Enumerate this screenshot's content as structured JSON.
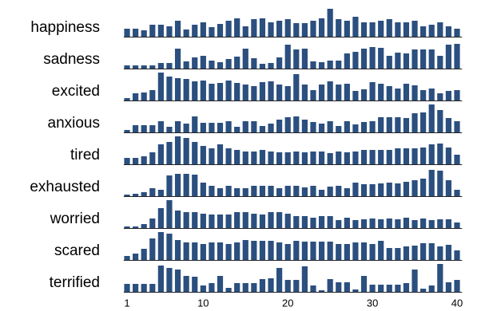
{
  "chart_data": {
    "type": "bar",
    "color": "#2b4f7e",
    "x": [
      1,
      2,
      3,
      4,
      5,
      6,
      7,
      8,
      9,
      10,
      11,
      12,
      13,
      14,
      15,
      16,
      17,
      18,
      19,
      20,
      21,
      22,
      23,
      24,
      25,
      26,
      27,
      28,
      29,
      30,
      31,
      32,
      33,
      34,
      35,
      36,
      37,
      38,
      39,
      40
    ],
    "xlim": [
      0.8,
      40.5
    ],
    "xticks": [
      1,
      10,
      20,
      30,
      40
    ],
    "ylim": [
      0,
      35
    ],
    "series": [
      {
        "name": "happiness",
        "values": [
          10,
          10,
          8,
          15,
          15,
          13,
          20,
          9,
          15,
          18,
          12,
          16,
          20,
          23,
          13,
          22,
          23,
          18,
          20,
          22,
          17,
          17,
          20,
          23,
          35,
          22,
          20,
          25,
          18,
          18,
          20,
          22,
          18,
          18,
          20,
          13,
          15,
          18,
          13,
          10
        ]
      },
      {
        "name": "sadness",
        "values": [
          4,
          4,
          4,
          4,
          7,
          7,
          25,
          9,
          14,
          16,
          10,
          8,
          12,
          15,
          25,
          13,
          6,
          7,
          14,
          30,
          24,
          25,
          9,
          8,
          10,
          10,
          19,
          21,
          25,
          27,
          26,
          16,
          20,
          19,
          24,
          24,
          24,
          16,
          30,
          31
        ]
      },
      {
        "name": "excited",
        "values": [
          3,
          9,
          10,
          13,
          35,
          30,
          28,
          27,
          24,
          25,
          21,
          22,
          25,
          22,
          20,
          18,
          23,
          24,
          20,
          18,
          33,
          20,
          13,
          20,
          24,
          20,
          21,
          12,
          14,
          23,
          21,
          18,
          15,
          21,
          19,
          13,
          15,
          9,
          12,
          13
        ]
      },
      {
        "name": "anxious",
        "values": [
          3,
          9,
          9,
          9,
          14,
          7,
          14,
          11,
          20,
          12,
          12,
          12,
          14,
          7,
          14,
          14,
          8,
          11,
          16,
          19,
          20,
          16,
          13,
          11,
          14,
          8,
          14,
          10,
          13,
          14,
          19,
          19,
          19,
          18,
          24,
          25,
          35,
          28,
          18,
          14
        ]
      },
      {
        "name": "tired",
        "values": [
          8,
          8,
          10,
          15,
          25,
          28,
          35,
          33,
          28,
          23,
          20,
          25,
          20,
          18,
          16,
          16,
          18,
          16,
          15,
          15,
          16,
          15,
          16,
          16,
          14,
          16,
          15,
          16,
          18,
          18,
          18,
          18,
          20,
          20,
          20,
          21,
          25,
          26,
          21,
          12
        ]
      },
      {
        "name": "exhausted",
        "values": [
          2,
          3,
          5,
          10,
          8,
          26,
          28,
          28,
          27,
          17,
          13,
          10,
          13,
          10,
          10,
          13,
          13,
          13,
          10,
          13,
          13,
          11,
          13,
          8,
          12,
          13,
          10,
          17,
          15,
          15,
          16,
          17,
          16,
          18,
          20,
          22,
          33,
          32,
          20,
          8
        ]
      },
      {
        "name": "worried",
        "values": [
          2,
          2,
          5,
          12,
          25,
          35,
          22,
          20,
          20,
          18,
          17,
          17,
          17,
          20,
          20,
          18,
          17,
          20,
          20,
          18,
          15,
          15,
          13,
          15,
          15,
          10,
          13,
          10,
          11,
          12,
          11,
          12,
          11,
          13,
          10,
          12,
          10,
          11,
          11,
          7
        ]
      },
      {
        "name": "scared",
        "values": [
          5,
          8,
          14,
          27,
          35,
          33,
          25,
          22,
          22,
          20,
          22,
          22,
          20,
          22,
          25,
          24,
          24,
          24,
          22,
          20,
          24,
          23,
          23,
          23,
          23,
          20,
          20,
          22,
          22,
          20,
          24,
          15,
          15,
          17,
          18,
          21,
          21,
          17,
          19,
          12
        ]
      },
      {
        "name": "terrified",
        "values": [
          10,
          10,
          10,
          10,
          33,
          30,
          28,
          20,
          19,
          8,
          11,
          20,
          5,
          11,
          11,
          11,
          16,
          17,
          30,
          15,
          15,
          32,
          8,
          2,
          16,
          12,
          12,
          3,
          20,
          9,
          9,
          9,
          9,
          11,
          28,
          4,
          8,
          35,
          12,
          15
        ]
      }
    ]
  }
}
